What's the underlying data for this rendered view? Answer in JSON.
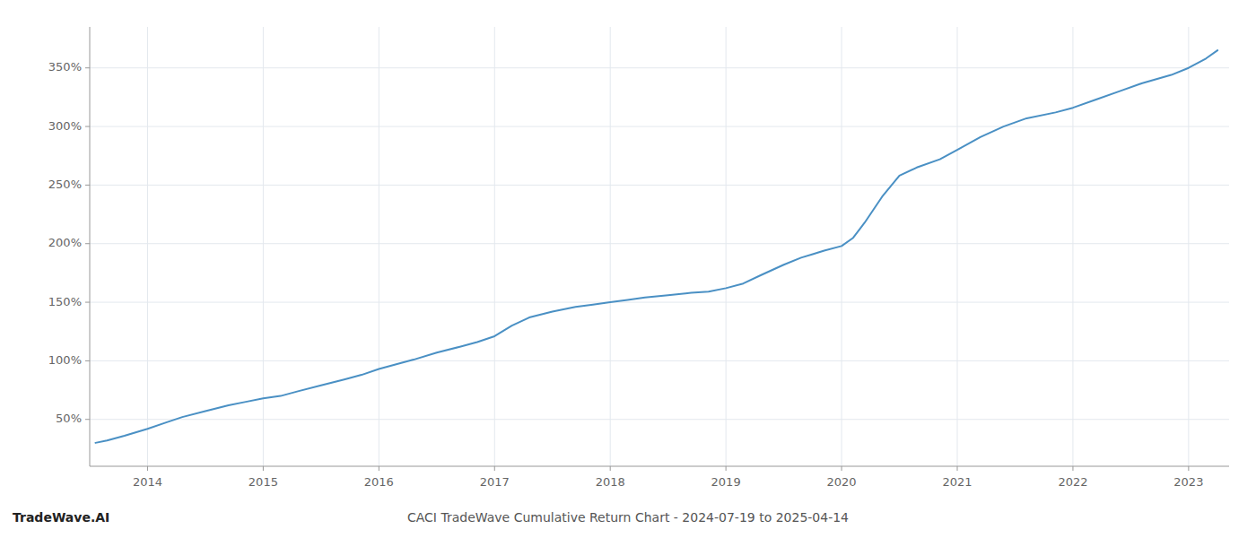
{
  "chart_data": {
    "type": "line",
    "title": "CACI TradeWave Cumulative Return Chart - 2024-07-19 to 2025-04-14",
    "annotations": [
      "TradeWave.AI"
    ],
    "color": "#4a90c4",
    "grid": true,
    "xlim": [
      2013.5,
      2023.35
    ],
    "ylim": [
      10,
      385
    ],
    "xticks": [
      2014,
      2015,
      2016,
      2017,
      2018,
      2019,
      2020,
      2021,
      2022,
      2023
    ],
    "yticks": [
      {
        "value": 50,
        "label": "50%"
      },
      {
        "value": 100,
        "label": "100%"
      },
      {
        "value": 150,
        "label": "150%"
      },
      {
        "value": 200,
        "label": "200%"
      },
      {
        "value": 250,
        "label": "250%"
      },
      {
        "value": 300,
        "label": "300%"
      },
      {
        "value": 350,
        "label": "350%"
      }
    ],
    "x": [
      2013.55,
      2013.65,
      2013.8,
      2014.0,
      2014.15,
      2014.3,
      2014.5,
      2014.7,
      2014.85,
      2015.0,
      2015.15,
      2015.3,
      2015.5,
      2015.7,
      2015.85,
      2016.0,
      2016.15,
      2016.3,
      2016.5,
      2016.7,
      2016.85,
      2017.0,
      2017.15,
      2017.3,
      2017.5,
      2017.7,
      2017.85,
      2018.0,
      2018.15,
      2018.3,
      2018.5,
      2018.7,
      2018.85,
      2019.0,
      2019.15,
      2019.3,
      2019.5,
      2019.65,
      2019.75,
      2019.85,
      2020.0,
      2020.1,
      2020.2,
      2020.35,
      2020.5,
      2020.65,
      2020.85,
      2021.0,
      2021.2,
      2021.4,
      2021.6,
      2021.85,
      2022.0,
      2022.2,
      2022.4,
      2022.6,
      2022.85,
      2023.0,
      2023.15,
      2023.25
    ],
    "values": [
      30,
      32,
      36,
      42,
      47,
      52,
      57,
      62,
      65,
      68,
      70,
      74,
      79,
      84,
      88,
      93,
      97,
      101,
      107,
      112,
      116,
      121,
      130,
      137,
      142,
      146,
      148,
      150,
      152,
      154,
      156,
      158,
      159,
      162,
      166,
      173,
      182,
      188,
      191,
      194,
      198,
      205,
      218,
      240,
      258,
      265,
      272,
      280,
      291,
      300,
      307,
      312,
      316,
      323,
      330,
      337,
      344,
      350,
      358,
      365
    ]
  }
}
